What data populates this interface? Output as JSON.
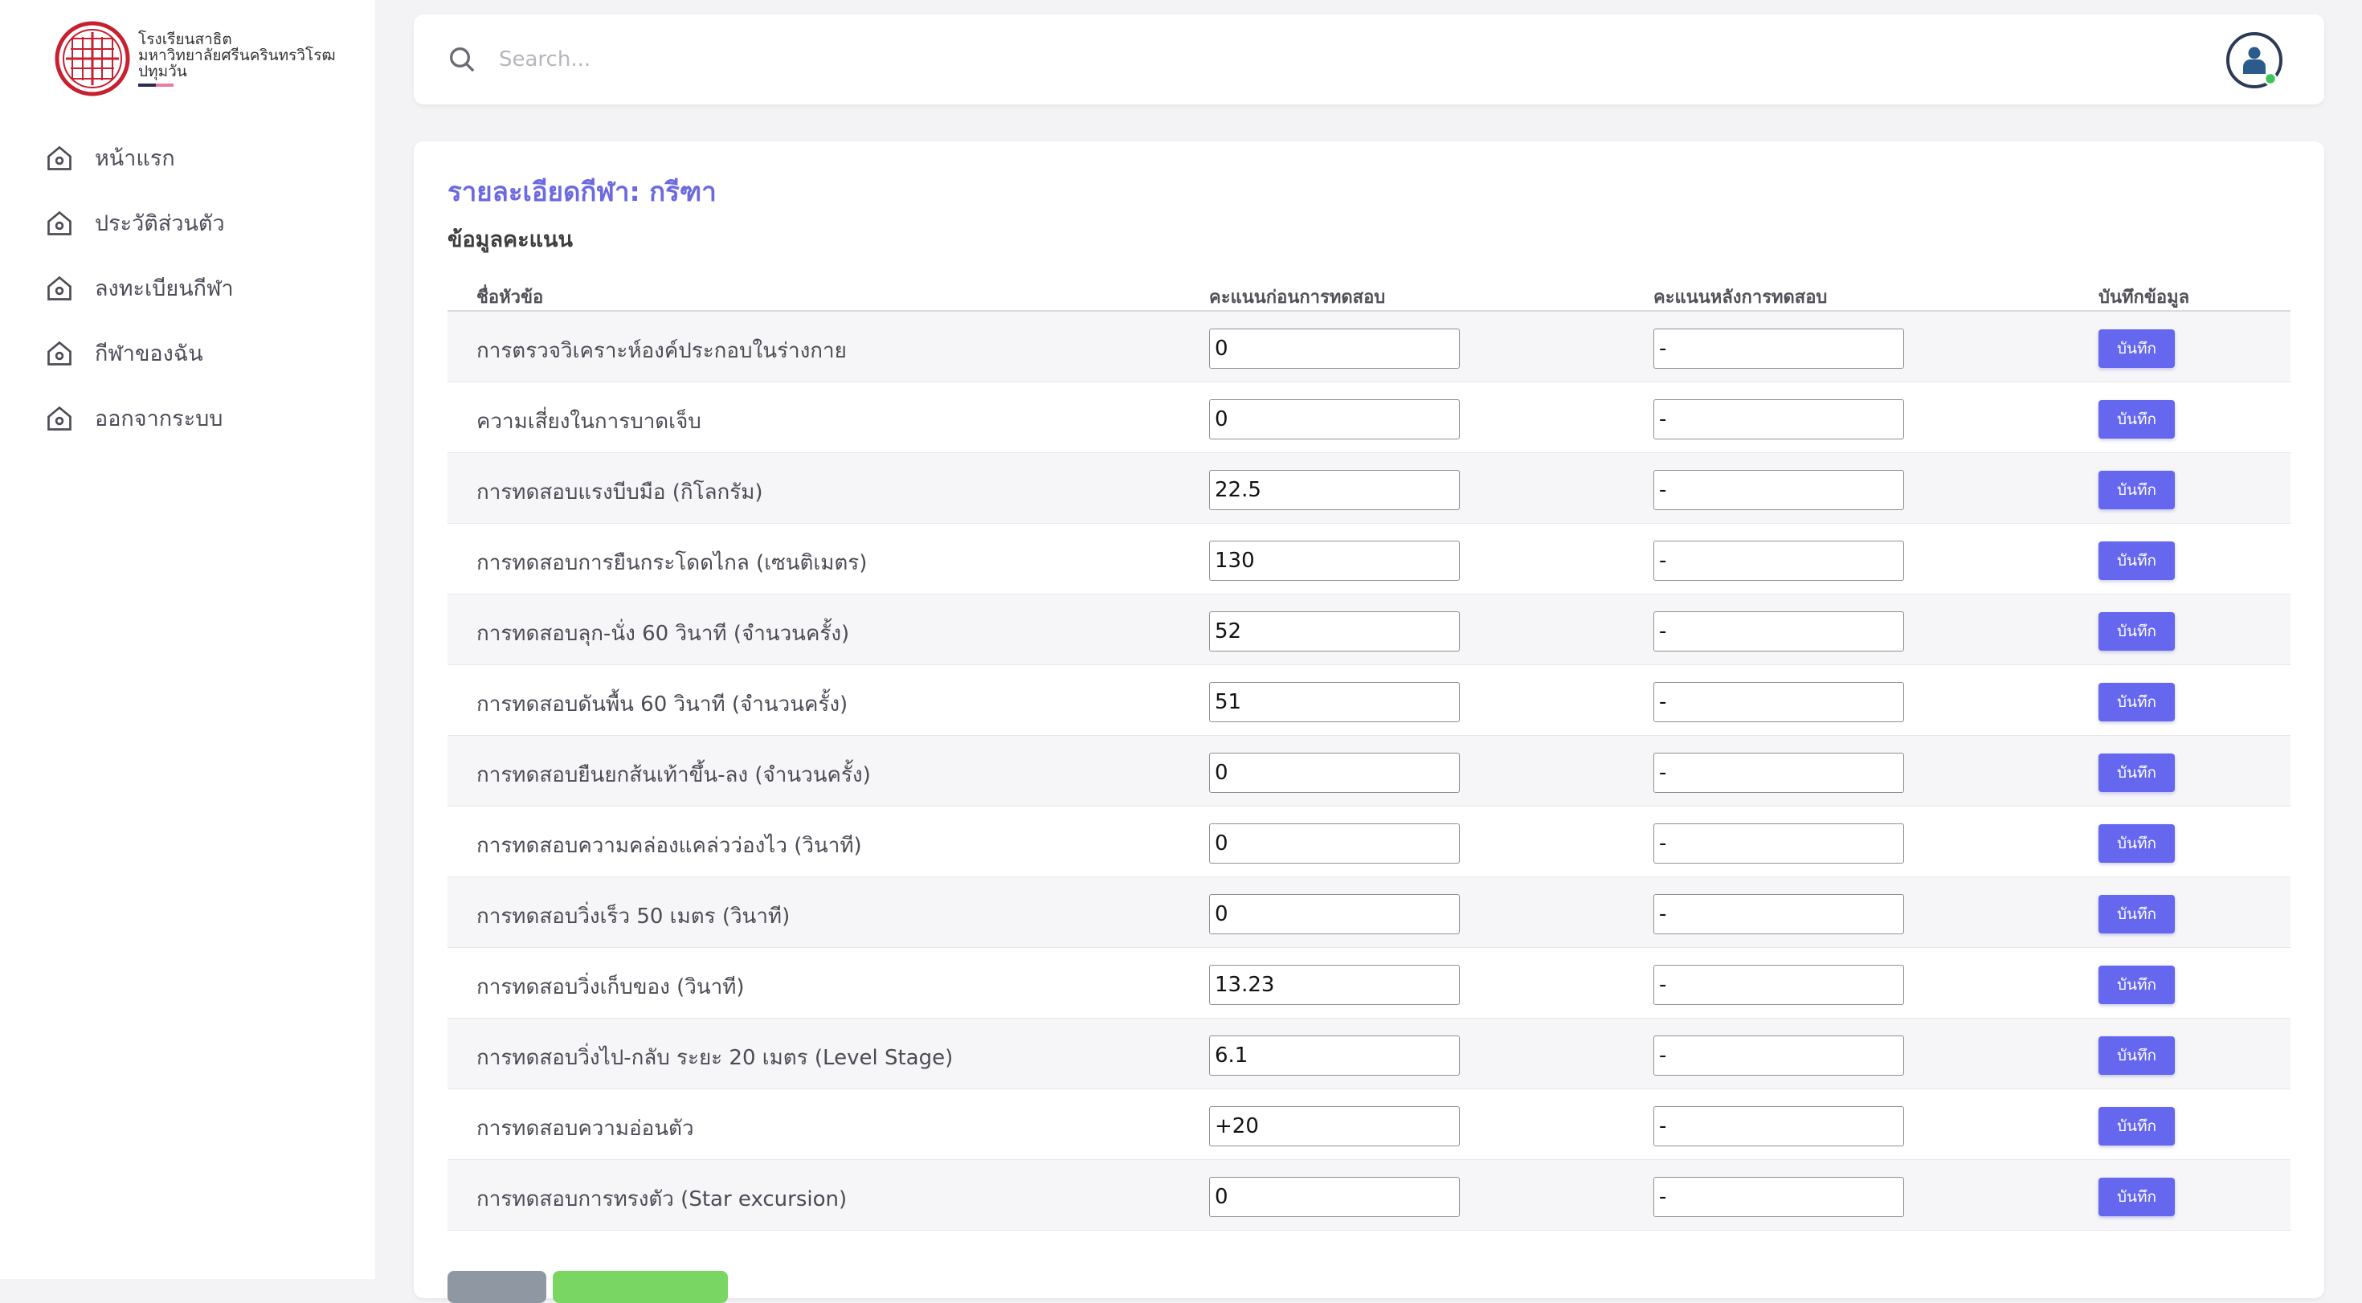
{
  "brand": {
    "line1": "โรงเรียนสาธิต",
    "line2": "มหาวิทยาลัยศรีนครินทรวิโรฒ",
    "line3": "ปทุมวัน"
  },
  "sidebar": {
    "items": [
      {
        "label": "หน้าแรก",
        "icon": "home-icon"
      },
      {
        "label": "ประวัติส่วนตัว",
        "icon": "home-icon"
      },
      {
        "label": "ลงทะเบียนกีฬา",
        "icon": "home-icon"
      },
      {
        "label": "กีฬาของฉัน",
        "icon": "home-icon"
      },
      {
        "label": "ออกจากระบบ",
        "icon": "home-icon"
      }
    ]
  },
  "search": {
    "placeholder": "Search..."
  },
  "card": {
    "title": "รายละเอียดกีฬา: กรีฑา",
    "subtitle": "ข้อมูลคะแนน"
  },
  "table": {
    "headers": [
      "ชื่อหัวข้อ",
      "คะแนนก่อนการทดสอบ",
      "คะแนนหลังการทดสอบ",
      "บันทึกข้อมูล"
    ],
    "save_label": "บันทึก",
    "rows": [
      {
        "label": "การตรวจวิเคราะห์องค์ประกอบในร่างกาย",
        "pre": "0",
        "post": "-"
      },
      {
        "label": "ความเสี่ยงในการบาดเจ็บ",
        "pre": "0",
        "post": "-"
      },
      {
        "label": "การทดสอบแรงบีบมือ (กิโลกรัม)",
        "pre": "22.5",
        "post": "-"
      },
      {
        "label": "การทดสอบการยืนกระโดดไกล (เซนติเมตร)",
        "pre": "130",
        "post": "-"
      },
      {
        "label": "การทดสอบลุก-นั่ง 60 วินาที (จำนวนครั้ง)",
        "pre": "52",
        "post": "-"
      },
      {
        "label": "การทดสอบดันพื้น 60 วินาที (จำนวนครั้ง)",
        "pre": "51",
        "post": "-"
      },
      {
        "label": "การทดสอบยืนยกส้นเท้าขึ้น-ลง (จำนวนครั้ง)",
        "pre": "0",
        "post": "-"
      },
      {
        "label": "การทดสอบความคล่องแคล่วว่องไว (วินาที)",
        "pre": "0",
        "post": "-"
      },
      {
        "label": "การทดสอบวิ่งเร็ว 50 เมตร (วินาที)",
        "pre": "0",
        "post": "-"
      },
      {
        "label": "การทดสอบวิ่งเก็บของ (วินาที)",
        "pre": "13.23",
        "post": "-"
      },
      {
        "label": "การทดสอบวิ่งไป-กลับ ระยะ 20 เมตร (Level Stage)",
        "pre": "6.1",
        "post": "-"
      },
      {
        "label": "การทดสอบความอ่อนตัว",
        "pre": "+20",
        "post": "-"
      },
      {
        "label": "การทดสอบการทรงตัว (Star excursion)",
        "pre": "0",
        "post": "-"
      }
    ]
  },
  "colors": {
    "accent": "#6567ee",
    "title": "#6d6ae0",
    "back_button": "#8f97a3",
    "next_button": "#79d663",
    "logo_red": "#c8202f",
    "online_dot": "#3ec45a"
  }
}
